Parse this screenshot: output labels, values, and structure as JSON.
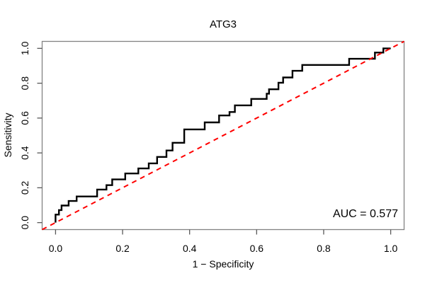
{
  "title": "ATG3",
  "axis": {
    "x_label": "1 − Specificity",
    "y_label": "Sensitivity"
  },
  "annotation": {
    "auc_text": "AUC = 0.577"
  },
  "chart_data": {
    "type": "line",
    "subtype": "roc-step-curve",
    "title": "ATG3",
    "xlabel": "1 − Specificity",
    "ylabel": "Sensitivity",
    "xlim": [
      -0.04,
      1.04
    ],
    "ylim": [
      -0.04,
      1.04
    ],
    "grid": false,
    "legend_position": "none",
    "x_ticks": [
      0.0,
      0.2,
      0.4,
      0.6,
      0.8,
      1.0
    ],
    "y_ticks": [
      0.0,
      0.2,
      0.4,
      0.6,
      0.8,
      1.0
    ],
    "x_tick_labels": [
      "0.0",
      "0.2",
      "0.4",
      "0.6",
      "0.8",
      "1.0"
    ],
    "y_tick_labels": [
      "0.0",
      "0.2",
      "0.4",
      "0.6",
      "0.8",
      "1.0"
    ],
    "auc": 0.577,
    "annotations": [
      {
        "text": "AUC = 0.577",
        "x": 0.92,
        "y": 0.06,
        "align": "right"
      }
    ],
    "series": [
      {
        "name": "ROC step curve",
        "color": "#000000",
        "style": "solid",
        "width": 2.4,
        "points": [
          [
            0.0,
            0.0
          ],
          [
            0.0,
            0.046
          ],
          [
            0.01,
            0.046
          ],
          [
            0.01,
            0.072
          ],
          [
            0.018,
            0.072
          ],
          [
            0.018,
            0.098
          ],
          [
            0.039,
            0.098
          ],
          [
            0.039,
            0.124
          ],
          [
            0.063,
            0.124
          ],
          [
            0.063,
            0.15
          ],
          [
            0.124,
            0.15
          ],
          [
            0.124,
            0.19
          ],
          [
            0.152,
            0.19
          ],
          [
            0.152,
            0.215
          ],
          [
            0.169,
            0.215
          ],
          [
            0.169,
            0.248
          ],
          [
            0.208,
            0.248
          ],
          [
            0.208,
            0.282
          ],
          [
            0.247,
            0.282
          ],
          [
            0.247,
            0.311
          ],
          [
            0.278,
            0.311
          ],
          [
            0.278,
            0.34
          ],
          [
            0.303,
            0.34
          ],
          [
            0.303,
            0.377
          ],
          [
            0.331,
            0.377
          ],
          [
            0.331,
            0.414
          ],
          [
            0.349,
            0.414
          ],
          [
            0.349,
            0.458
          ],
          [
            0.384,
            0.458
          ],
          [
            0.384,
            0.535
          ],
          [
            0.445,
            0.535
          ],
          [
            0.445,
            0.575
          ],
          [
            0.488,
            0.575
          ],
          [
            0.488,
            0.615
          ],
          [
            0.519,
            0.615
          ],
          [
            0.519,
            0.635
          ],
          [
            0.535,
            0.635
          ],
          [
            0.535,
            0.673
          ],
          [
            0.584,
            0.673
          ],
          [
            0.584,
            0.71
          ],
          [
            0.63,
            0.71
          ],
          [
            0.63,
            0.74
          ],
          [
            0.637,
            0.74
          ],
          [
            0.637,
            0.765
          ],
          [
            0.665,
            0.765
          ],
          [
            0.665,
            0.803
          ],
          [
            0.679,
            0.803
          ],
          [
            0.679,
            0.833
          ],
          [
            0.707,
            0.833
          ],
          [
            0.707,
            0.871
          ],
          [
            0.736,
            0.871
          ],
          [
            0.736,
            0.905
          ],
          [
            0.876,
            0.905
          ],
          [
            0.876,
            0.94
          ],
          [
            0.953,
            0.94
          ],
          [
            0.953,
            0.976
          ],
          [
            0.978,
            0.976
          ],
          [
            0.978,
            1.0
          ],
          [
            1.0,
            1.0
          ]
        ]
      },
      {
        "name": "Chance diagonal",
        "color": "#ff0000",
        "style": "dashed",
        "width": 2,
        "points": [
          [
            -0.04,
            -0.04
          ],
          [
            1.04,
            1.04
          ]
        ]
      }
    ]
  },
  "colors": {
    "curve": "#000000",
    "diagonal": "#ff0000",
    "box": "#838383",
    "tick": "#595959",
    "text": "#000000",
    "background": "#ffffff"
  }
}
